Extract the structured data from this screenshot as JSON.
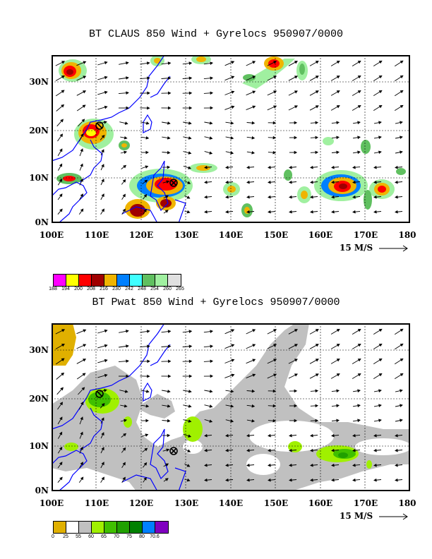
{
  "top": {
    "title": "BT CLAUS 850 Wind + Gyrelocs 950907/0000",
    "lat_labels": [
      "30N",
      "20N",
      "10N",
      "0N"
    ],
    "lon_labels": [
      "100E",
      "110E",
      "120E",
      "130E",
      "140E",
      "150E",
      "160E",
      "170E",
      "180"
    ],
    "scale_label": "15 M/S",
    "legend": {
      "colors": [
        "#ff00ff",
        "#ffff00",
        "#ff0000",
        "#a00000",
        "#f0b400",
        "#0080ff",
        "#40ffff",
        "#60c060",
        "#a0f0a0",
        "#e0e0e0"
      ],
      "ticks": [
        "188",
        "194",
        "200",
        "208",
        "216",
        "230",
        "242",
        "248",
        "254",
        "260",
        "265"
      ]
    }
  },
  "bottom": {
    "title": "BT Pwat 850 Wind + Gyrelocs 950907/0000",
    "lat_labels": [
      "30N",
      "20N",
      "10N",
      "0N"
    ],
    "lon_labels": [
      "100E",
      "110E",
      "120E",
      "130E",
      "140E",
      "150E",
      "160E",
      "170E",
      "180"
    ],
    "scale_label": "15 M/S",
    "legend": {
      "colors": [
        "#e0b000",
        "#ffffff",
        "#c0c0c0",
        "#a0f000",
        "#40c000",
        "#20a000",
        "#008000",
        "#0080ff",
        "#8000c0"
      ],
      "ticks": [
        "0",
        "25",
        "55",
        "60",
        "65",
        "70",
        "75",
        "80",
        "70.6"
      ]
    }
  },
  "colors": {
    "coast": "#0000ff",
    "frame": "#000000"
  },
  "icons": [
    "gyre-location-circle-x-icon",
    "wind-vector-arrow-icon",
    "scale-arrow-icon"
  ]
}
